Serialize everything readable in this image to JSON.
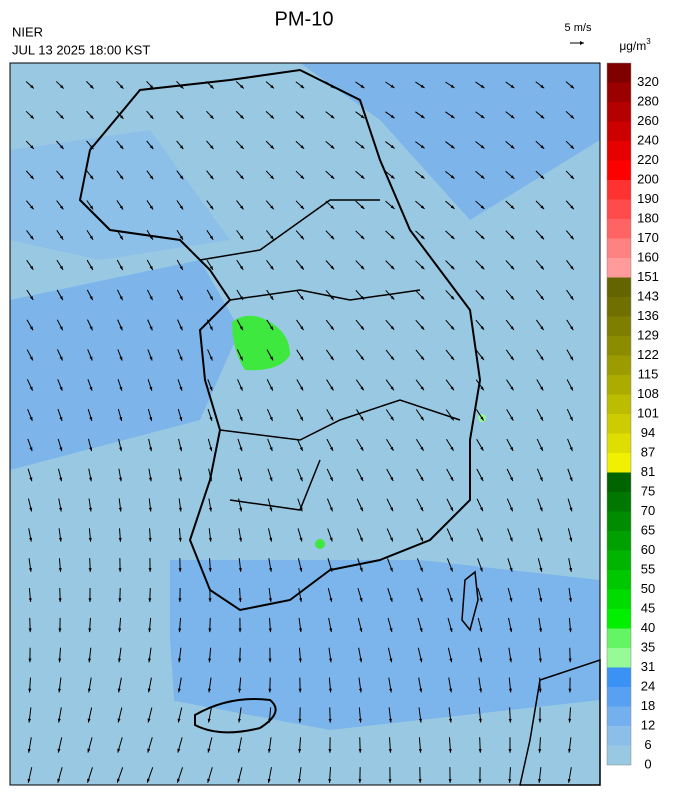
{
  "header": {
    "title": "PM-10",
    "agency": "NIER",
    "datetime": "JUL 13 2025 18:00 KST"
  },
  "wind_scale": {
    "label": "5 m/s"
  },
  "legend": {
    "unit": {
      "base": "μg/m",
      "exponent": "3"
    },
    "bins": [
      {
        "label": "0",
        "color": "#99c9e2"
      },
      {
        "label": "6",
        "color": "#8bbfe9"
      },
      {
        "label": "12",
        "color": "#74b0ee"
      },
      {
        "label": "18",
        "color": "#58a0f1"
      },
      {
        "label": "24",
        "color": "#3a92f4"
      },
      {
        "label": "31",
        "color": "#96fa96"
      },
      {
        "label": "35",
        "color": "#64f564"
      },
      {
        "label": "40",
        "color": "#00f000"
      },
      {
        "label": "45",
        "color": "#00dc00"
      },
      {
        "label": "50",
        "color": "#00c800"
      },
      {
        "label": "55",
        "color": "#00b400"
      },
      {
        "label": "60",
        "color": "#00a000"
      },
      {
        "label": "65",
        "color": "#008c00"
      },
      {
        "label": "70",
        "color": "#007800"
      },
      {
        "label": "75",
        "color": "#006400"
      },
      {
        "label": "81",
        "color": "#f0f000"
      },
      {
        "label": "87",
        "color": "#dede00"
      },
      {
        "label": "94",
        "color": "#cccc00"
      },
      {
        "label": "101",
        "color": "#bcbc00"
      },
      {
        "label": "108",
        "color": "#acac00"
      },
      {
        "label": "115",
        "color": "#9c9c00"
      },
      {
        "label": "122",
        "color": "#8c8c00"
      },
      {
        "label": "129",
        "color": "#7e7e00"
      },
      {
        "label": "136",
        "color": "#707000"
      },
      {
        "label": "143",
        "color": "#646400"
      },
      {
        "label": "151",
        "color": "#ff9b9b"
      },
      {
        "label": "160",
        "color": "#ff8282"
      },
      {
        "label": "170",
        "color": "#ff6464"
      },
      {
        "label": "180",
        "color": "#ff4b4b"
      },
      {
        "label": "190",
        "color": "#ff3232"
      },
      {
        "label": "200",
        "color": "#ff0000"
      },
      {
        "label": "220",
        "color": "#e60000"
      },
      {
        "label": "240",
        "color": "#cd0000"
      },
      {
        "label": "260",
        "color": "#b40000"
      },
      {
        "label": "280",
        "color": "#9b0000"
      },
      {
        "label": "320",
        "color": "#800000"
      }
    ]
  }
}
